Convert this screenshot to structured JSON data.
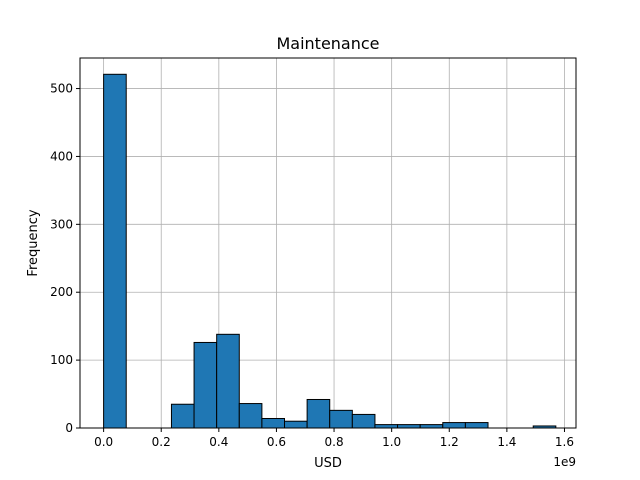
{
  "chart_data": {
    "type": "bar",
    "subtype": "histogram",
    "title": "Maintenance",
    "xlabel": "USD",
    "ylabel": "Frequency",
    "x_offset_label": "1e9",
    "xlim": [
      -0.082,
      1.64
    ],
    "ylim": [
      0,
      545
    ],
    "x_ticks": [
      0.0,
      0.2,
      0.4,
      0.6,
      0.8,
      1.0,
      1.2,
      1.4,
      1.6
    ],
    "x_tick_labels": [
      "0.0",
      "0.2",
      "0.4",
      "0.6",
      "0.8",
      "1.0",
      "1.2",
      "1.4",
      "1.6"
    ],
    "y_ticks": [
      0,
      100,
      200,
      300,
      400,
      500
    ],
    "y_tick_labels": [
      "0",
      "100",
      "200",
      "300",
      "400",
      "500"
    ],
    "grid": true,
    "bin_edges": [
      0.0,
      0.0785,
      0.157,
      0.2355,
      0.314,
      0.3925,
      0.471,
      0.5495,
      0.628,
      0.7065,
      0.785,
      0.8635,
      0.942,
      1.0205,
      1.099,
      1.1775,
      1.256,
      1.3345,
      1.413,
      1.4915,
      1.57
    ],
    "counts": [
      521,
      0,
      0,
      35,
      126,
      138,
      36,
      14,
      10,
      42,
      26,
      20,
      5,
      5,
      5,
      8,
      8,
      0,
      0,
      3
    ],
    "colors": {
      "bar_fill": "#1f77b4",
      "bar_edge": "#000000",
      "grid": "#b0b0b0"
    }
  }
}
